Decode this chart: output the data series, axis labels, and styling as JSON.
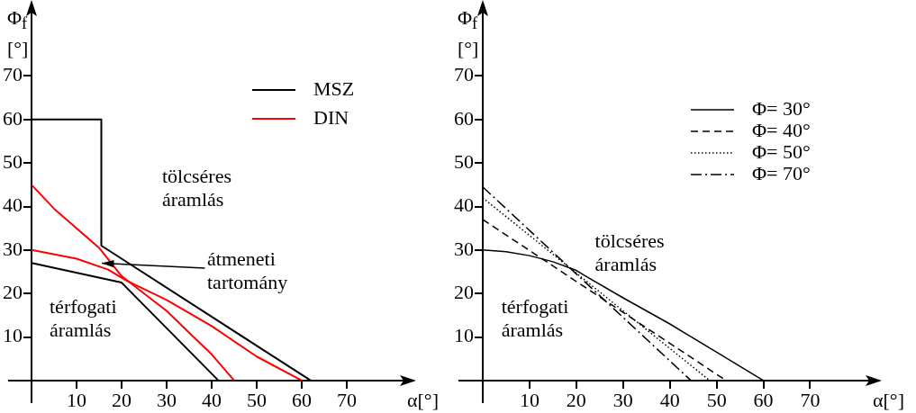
{
  "chart_data": [
    {
      "type": "line",
      "xlabel": "α[°]",
      "ylabel": "Φ$_{f}$ [°]",
      "xlim": [
        -5,
        83
      ],
      "ylim": [
        -5,
        85
      ],
      "xticks": [
        10,
        20,
        30,
        40,
        50,
        60,
        70
      ],
      "yticks": [
        10,
        20,
        30,
        40,
        50,
        60,
        70
      ],
      "legend": "top right",
      "series": [
        {
          "name": "MSZ",
          "color": "#000000",
          "x": [
            0,
            15.5,
            15.5,
            62
          ],
          "values": [
            60,
            60,
            31,
            0
          ]
        },
        {
          "color": "#000000",
          "x": [
            0,
            20,
            41.5
          ],
          "values": [
            27,
            22.5,
            0
          ]
        },
        {
          "name": "DIN",
          "color": "#ff0000",
          "x": [
            0,
            5,
            10,
            15,
            20,
            25,
            30,
            35,
            40,
            45
          ],
          "values": [
            45,
            39.5,
            35,
            30.5,
            24,
            20,
            16,
            11,
            6,
            0
          ]
        },
        {
          "color": "#ff0000",
          "x": [
            0,
            10,
            17,
            21,
            30,
            40,
            50,
            60
          ],
          "values": [
            30,
            28,
            25.5,
            23,
            18.5,
            12.5,
            5.5,
            0
          ]
        }
      ],
      "annotations": [
        "tölcséres áramlás",
        {
          "text": "átmeneti tartomány",
          "x": 15.5,
          "y": 27
        },
        "térfogati áramlás"
      ]
    },
    {
      "type": "line",
      "xlabel": "α[°]",
      "ylabel": "Φ$_{f}$ [°]",
      "xlim": [
        -5,
        83
      ],
      "ylim": [
        -5,
        85
      ],
      "xticks": [
        10,
        20,
        30,
        40,
        50,
        60,
        70
      ],
      "yticks": [
        10,
        20,
        30,
        40,
        50,
        60,
        70
      ],
      "legend": "top right",
      "series": [
        {
          "name": "Φ= 30°",
          "color": "#000000",
          "line_style": "solid",
          "x": [
            0,
            5,
            10,
            15,
            20,
            22,
            30,
            40,
            50,
            60
          ],
          "values": [
            30,
            29.6,
            28.7,
            27.3,
            25.3,
            24,
            19,
            13,
            6.5,
            0
          ]
        },
        {
          "name": "Φ= 40°",
          "color": "#000000",
          "line_style": "dashed",
          "x": [
            0,
            52
          ],
          "values": [
            37,
            0
          ]
        },
        {
          "name": "Φ= 50°",
          "color": "#000000",
          "line_style": "dotted",
          "x": [
            0,
            48.5
          ],
          "values": [
            42,
            0
          ]
        },
        {
          "name": "Φ= 70°",
          "color": "#000000",
          "line_style": "dashdot",
          "x": [
            0,
            44.5
          ],
          "values": [
            44.5,
            0
          ]
        }
      ],
      "annotations": [
        "tölcséres áramlás",
        "térfogati áramlás"
      ]
    }
  ]
}
